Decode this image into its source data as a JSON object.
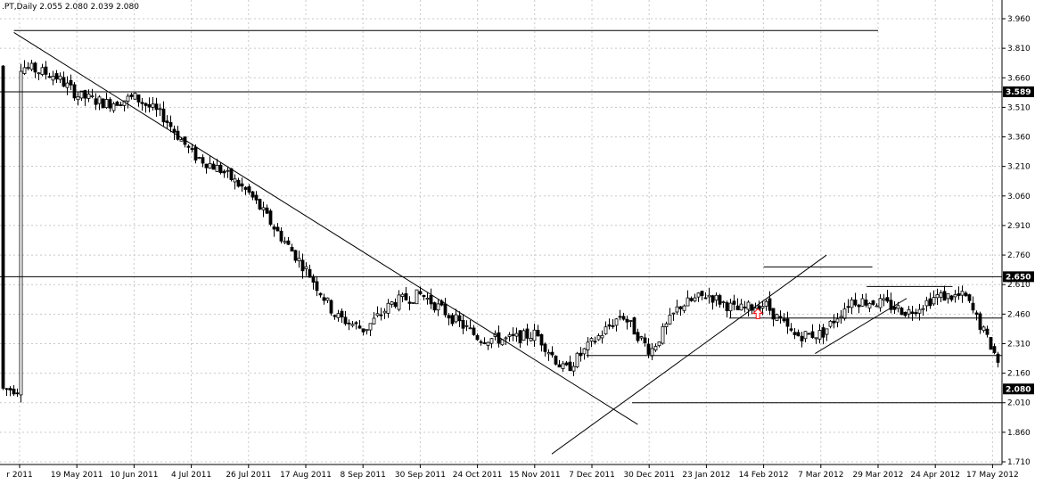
{
  "window": {
    "title": ".PT,Daily  2.055 2.080 2.039 2.080"
  },
  "colors": {
    "background": "#ffffff",
    "grid": "#c8c8c8",
    "candle": "#000000",
    "trendline": "#000000",
    "arrow": "#ff0000",
    "price_badge_bg": "#000000",
    "price_badge_text": "#ffffff"
  },
  "chart_data": {
    "type": "candlestick",
    "title": ".PT,Daily",
    "ohlc_readout": {
      "open": 2.055,
      "high": 2.08,
      "low": 2.039,
      "close": 2.08
    },
    "x_ticks": [
      "r 2011",
      "19 May 2011",
      "10 Jun 2011",
      "4 Jul 2011",
      "26 Jul 2011",
      "17 Aug 2011",
      "8 Sep 2011",
      "30 Sep 2011",
      "24 Oct 2011",
      "15 Nov 2011",
      "7 Dec 2011",
      "30 Dec 2011",
      "23 Jan 2012",
      "14 Feb 2012",
      "7 Mar 2012",
      "29 Mar 2012",
      "24 Apr 2012",
      "17 May 2012"
    ],
    "y_ticks": [
      "3.960",
      "3.810",
      "3.660",
      "3.510",
      "3.360",
      "3.210",
      "3.060",
      "2.910",
      "2.760",
      "2.610",
      "2.460",
      "2.310",
      "2.160",
      "2.010",
      "1.860",
      "1.710"
    ],
    "ylim": [
      1.71,
      3.96
    ],
    "grid": true,
    "levels": [
      {
        "label": "3.589",
        "value": 3.589
      },
      {
        "label": "2.650",
        "value": 2.65
      },
      {
        "label": "2.080",
        "value": 2.08
      }
    ],
    "close_points": [
      {
        "x": 0,
        "y": 3.72
      },
      {
        "x": 0.6,
        "y": 3.67
      },
      {
        "x": 1,
        "y": 3.57
      },
      {
        "x": 1.5,
        "y": 3.53
      },
      {
        "x": 2,
        "y": 3.56
      },
      {
        "x": 2.5,
        "y": 3.46
      },
      {
        "x": 3,
        "y": 3.27
      },
      {
        "x": 3.5,
        "y": 3.19
      },
      {
        "x": 4,
        "y": 3.07
      },
      {
        "x": 4.5,
        "y": 2.87
      },
      {
        "x": 5,
        "y": 2.68
      },
      {
        "x": 5.5,
        "y": 2.45
      },
      {
        "x": 6,
        "y": 2.38
      },
      {
        "x": 6.5,
        "y": 2.52
      },
      {
        "x": 7,
        "y": 2.56
      },
      {
        "x": 7.5,
        "y": 2.45
      },
      {
        "x": 8,
        "y": 2.34
      },
      {
        "x": 8.5,
        "y": 2.33
      },
      {
        "x": 9,
        "y": 2.36
      },
      {
        "x": 9.5,
        "y": 2.17
      },
      {
        "x": 10,
        "y": 2.32
      },
      {
        "x": 10.5,
        "y": 2.46
      },
      {
        "x": 11,
        "y": 2.27
      },
      {
        "x": 11.5,
        "y": 2.5
      },
      {
        "x": 12,
        "y": 2.56
      },
      {
        "x": 12.5,
        "y": 2.48
      },
      {
        "x": 13,
        "y": 2.51
      },
      {
        "x": 13.5,
        "y": 2.35
      },
      {
        "x": 14,
        "y": 2.36
      },
      {
        "x": 14.5,
        "y": 2.53
      },
      {
        "x": 15,
        "y": 2.52
      },
      {
        "x": 15.5,
        "y": 2.47
      },
      {
        "x": 16,
        "y": 2.55
      },
      {
        "x": 16.5,
        "y": 2.55
      },
      {
        "x": 17,
        "y": 2.27
      },
      {
        "x": 17.2,
        "y": 2.13
      },
      {
        "x": 17.5,
        "y": 2.08
      },
      {
        "x": 18,
        "y": 2.08
      }
    ],
    "trendlines": [
      {
        "name": "down-trendline",
        "x1": -0.1,
        "y1": 3.89,
        "x2": 10.8,
        "y2": 1.9
      },
      {
        "name": "up-trendline",
        "x1": 9.3,
        "y1": 1.75,
        "x2": 14.1,
        "y2": 2.76
      },
      {
        "name": "top-horizontal-line",
        "x1": -0.1,
        "y1": 3.9,
        "x2": 15.0,
        "y2": 3.9
      },
      {
        "name": "breakout-box-line",
        "x1": 13.0,
        "y1": 2.7,
        "x2": 14.9,
        "y2": 2.7
      },
      {
        "name": "resistance-2-44-line",
        "x1": 12.4,
        "y1": 2.44,
        "x2": 17.3,
        "y2": 2.44
      },
      {
        "name": "range-top-line",
        "x1": 9.9,
        "y1": 2.25,
        "x2": 18.2,
        "y2": 2.25
      },
      {
        "name": "range-bottom-line",
        "x1": 10.7,
        "y1": 2.01,
        "x2": 18.2,
        "y2": 2.01
      },
      {
        "name": "channel-top-line",
        "x1": 14.8,
        "y1": 2.6,
        "x2": 16.3,
        "y2": 2.6
      },
      {
        "name": "channel-lower-trend-line",
        "x1": 13.9,
        "y1": 2.26,
        "x2": 15.5,
        "y2": 2.54
      }
    ],
    "arrow": {
      "x": 12.9,
      "y": 2.46
    }
  }
}
